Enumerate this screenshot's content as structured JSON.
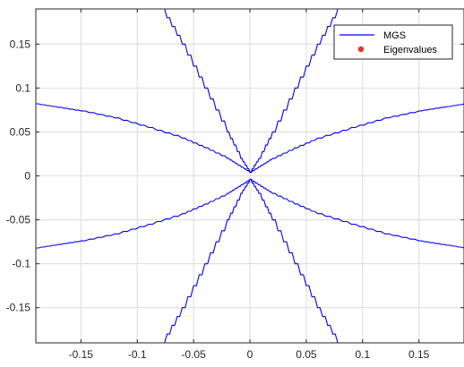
{
  "chart_data": {
    "type": "line",
    "title": "",
    "xlabel": "",
    "ylabel": "",
    "xlim": [
      -0.19,
      0.19
    ],
    "ylim": [
      -0.19,
      0.19
    ],
    "grid": true,
    "legend_position": "top-right",
    "x_ticks": [
      -0.15,
      -0.1,
      -0.05,
      0,
      0.05,
      0.1,
      0.15
    ],
    "y_ticks": [
      0.15,
      0.1,
      0.05,
      0,
      -0.05,
      -0.1,
      -0.15
    ],
    "x_tick_labels": [
      "-0.15",
      "-0.1",
      "-0.05",
      "0",
      "0.05",
      "0.1",
      "0.15"
    ],
    "y_tick_labels": [
      "0.15",
      "0.1",
      "0.05",
      "0",
      "-0.05",
      "-0.1",
      "-0.15"
    ],
    "legend": [
      {
        "label": "MGS",
        "color": "#0000ff",
        "marker": "line"
      },
      {
        "label": "Eigenvalues",
        "color": "#e8312a",
        "marker": "dot"
      }
    ],
    "series": [
      {
        "name": "MGS",
        "color": "#0000ff",
        "branches": [
          [
            [
              -0.19,
              0.082
            ],
            [
              -0.17,
              0.078
            ],
            [
              -0.15,
              0.074
            ],
            [
              -0.12,
              0.066
            ],
            [
              -0.09,
              0.055
            ],
            [
              -0.06,
              0.043
            ],
            [
              -0.04,
              0.032
            ],
            [
              -0.02,
              0.02
            ],
            [
              -0.01,
              0.012
            ],
            [
              0,
              0.004
            ],
            [
              0.01,
              0.012
            ],
            [
              0.02,
              0.02
            ],
            [
              0.04,
              0.032
            ],
            [
              0.06,
              0.043
            ],
            [
              0.09,
              0.055
            ],
            [
              0.12,
              0.066
            ],
            [
              0.15,
              0.074
            ],
            [
              0.17,
              0.078
            ],
            [
              0.19,
              0.082
            ]
          ],
          [
            [
              -0.19,
              -0.082
            ],
            [
              -0.17,
              -0.078
            ],
            [
              -0.15,
              -0.074
            ],
            [
              -0.12,
              -0.066
            ],
            [
              -0.09,
              -0.055
            ],
            [
              -0.06,
              -0.043
            ],
            [
              -0.04,
              -0.032
            ],
            [
              -0.02,
              -0.02
            ],
            [
              -0.01,
              -0.012
            ],
            [
              0,
              -0.004
            ],
            [
              0.01,
              -0.012
            ],
            [
              0.02,
              -0.02
            ],
            [
              0.04,
              -0.032
            ],
            [
              0.06,
              -0.043
            ],
            [
              0.09,
              -0.055
            ],
            [
              0.12,
              -0.066
            ],
            [
              0.15,
              -0.074
            ],
            [
              0.17,
              -0.078
            ],
            [
              0.19,
              -0.082
            ]
          ],
          [
            [
              -0.078,
              0.19
            ],
            [
              -0.06,
              0.15
            ],
            [
              -0.04,
              0.1
            ],
            [
              -0.02,
              0.05
            ],
            [
              -0.008,
              0.02
            ],
            [
              0,
              0.004
            ],
            [
              0.008,
              0.02
            ],
            [
              0.02,
              0.05
            ],
            [
              0.04,
              0.1
            ],
            [
              0.06,
              0.15
            ],
            [
              0.078,
              0.19
            ]
          ],
          [
            [
              -0.078,
              -0.19
            ],
            [
              -0.06,
              -0.15
            ],
            [
              -0.04,
              -0.1
            ],
            [
              -0.02,
              -0.05
            ],
            [
              -0.008,
              -0.02
            ],
            [
              0,
              -0.004
            ],
            [
              0.008,
              -0.02
            ],
            [
              0.02,
              -0.05
            ],
            [
              0.04,
              -0.1
            ],
            [
              0.06,
              -0.15
            ],
            [
              0.078,
              -0.19
            ]
          ]
        ]
      }
    ]
  }
}
